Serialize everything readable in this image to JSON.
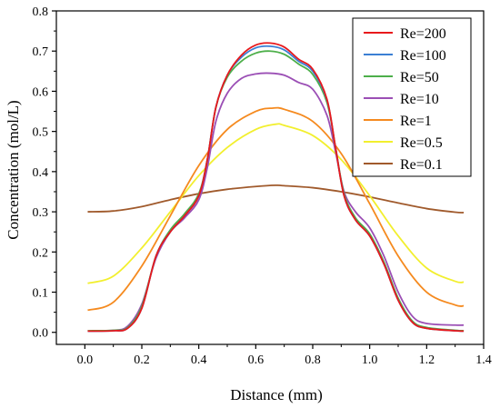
{
  "chart_data": {
    "type": "line",
    "xlabel": "Distance (mm)",
    "ylabel": "Concentration (mol/L)",
    "xlim": [
      -0.1,
      1.4
    ],
    "ylim": [
      -0.03,
      0.8
    ],
    "xticks": [
      0.0,
      0.2,
      0.4,
      0.6,
      0.8,
      1.0,
      1.2,
      1.4
    ],
    "yticks": [
      0.0,
      0.1,
      0.2,
      0.3,
      0.4,
      0.5,
      0.6,
      0.7,
      0.8
    ],
    "xtick_labels": [
      "0.0",
      "0.2",
      "0.4",
      "0.6",
      "0.8",
      "1.0",
      "1.2",
      "1.4"
    ],
    "ytick_labels": [
      "0.0",
      "0.1",
      "0.2",
      "0.3",
      "0.4",
      "0.5",
      "0.6",
      "0.7",
      "0.8"
    ],
    "grid": false,
    "legend_position": "top-right",
    "series": [
      {
        "name": "Re=200",
        "color": "#e8191c",
        "x": [
          0.01,
          0.1,
          0.15,
          0.2,
          0.25,
          0.3,
          0.35,
          0.4,
          0.43,
          0.46,
          0.5,
          0.55,
          0.6,
          0.65,
          0.7,
          0.75,
          0.8,
          0.85,
          0.88,
          0.91,
          0.95,
          1.0,
          1.05,
          1.1,
          1.15,
          1.2,
          1.3,
          1.33
        ],
        "y": [
          0.003,
          0.004,
          0.01,
          0.06,
          0.19,
          0.25,
          0.29,
          0.34,
          0.43,
          0.56,
          0.64,
          0.69,
          0.715,
          0.72,
          0.71,
          0.68,
          0.655,
          0.58,
          0.46,
          0.34,
          0.28,
          0.24,
          0.17,
          0.08,
          0.025,
          0.01,
          0.004,
          0.003
        ]
      },
      {
        "name": "Re=100",
        "color": "#3b7fd4",
        "x": [
          0.01,
          0.1,
          0.15,
          0.2,
          0.25,
          0.3,
          0.35,
          0.4,
          0.43,
          0.46,
          0.5,
          0.55,
          0.6,
          0.65,
          0.7,
          0.75,
          0.8,
          0.85,
          0.88,
          0.91,
          0.95,
          1.0,
          1.05,
          1.1,
          1.15,
          1.2,
          1.3,
          1.33
        ],
        "y": [
          0.003,
          0.004,
          0.01,
          0.06,
          0.19,
          0.25,
          0.29,
          0.34,
          0.43,
          0.56,
          0.64,
          0.685,
          0.708,
          0.712,
          0.703,
          0.675,
          0.65,
          0.578,
          0.46,
          0.34,
          0.28,
          0.24,
          0.17,
          0.08,
          0.025,
          0.01,
          0.004,
          0.003
        ]
      },
      {
        "name": "Re=50",
        "color": "#4daf4a",
        "x": [
          0.01,
          0.1,
          0.15,
          0.2,
          0.25,
          0.3,
          0.35,
          0.4,
          0.43,
          0.46,
          0.5,
          0.55,
          0.6,
          0.65,
          0.7,
          0.75,
          0.8,
          0.85,
          0.88,
          0.91,
          0.95,
          1.0,
          1.05,
          1.1,
          1.15,
          1.2,
          1.3,
          1.33
        ],
        "y": [
          0.004,
          0.005,
          0.012,
          0.065,
          0.19,
          0.255,
          0.295,
          0.345,
          0.43,
          0.56,
          0.635,
          0.675,
          0.695,
          0.7,
          0.692,
          0.668,
          0.642,
          0.572,
          0.46,
          0.345,
          0.285,
          0.245,
          0.175,
          0.085,
          0.028,
          0.012,
          0.005,
          0.004
        ]
      },
      {
        "name": "Re=10",
        "color": "#9b4fb5",
        "x": [
          0.01,
          0.1,
          0.15,
          0.2,
          0.25,
          0.3,
          0.35,
          0.4,
          0.43,
          0.46,
          0.5,
          0.55,
          0.6,
          0.65,
          0.7,
          0.75,
          0.8,
          0.85,
          0.88,
          0.91,
          0.95,
          1.0,
          1.05,
          1.1,
          1.15,
          1.2,
          1.3,
          1.33
        ],
        "y": [
          0.003,
          0.005,
          0.015,
          0.07,
          0.185,
          0.25,
          0.285,
          0.33,
          0.41,
          0.525,
          0.595,
          0.632,
          0.643,
          0.645,
          0.64,
          0.622,
          0.605,
          0.54,
          0.45,
          0.35,
          0.3,
          0.26,
          0.19,
          0.1,
          0.04,
          0.022,
          0.018,
          0.018
        ]
      },
      {
        "name": "Re=1",
        "color": "#f58a1f",
        "x": [
          0.01,
          0.1,
          0.2,
          0.3,
          0.4,
          0.5,
          0.6,
          0.66,
          0.7,
          0.8,
          0.9,
          1.0,
          1.1,
          1.2,
          1.3,
          1.33
        ],
        "y": [
          0.055,
          0.075,
          0.165,
          0.29,
          0.415,
          0.505,
          0.55,
          0.558,
          0.555,
          0.525,
          0.445,
          0.32,
          0.19,
          0.1,
          0.068,
          0.066
        ]
      },
      {
        "name": "Re=0.5",
        "color": "#f2ef2e",
        "x": [
          0.01,
          0.1,
          0.2,
          0.3,
          0.4,
          0.5,
          0.6,
          0.67,
          0.7,
          0.8,
          0.9,
          1.0,
          1.1,
          1.2,
          1.3,
          1.33
        ],
        "y": [
          0.122,
          0.14,
          0.21,
          0.3,
          0.39,
          0.46,
          0.505,
          0.518,
          0.515,
          0.49,
          0.43,
          0.34,
          0.24,
          0.16,
          0.127,
          0.125
        ]
      },
      {
        "name": "Re=0.1",
        "color": "#a05a2c",
        "x": [
          0.01,
          0.1,
          0.2,
          0.3,
          0.4,
          0.5,
          0.6,
          0.67,
          0.7,
          0.8,
          0.9,
          1.0,
          1.1,
          1.2,
          1.3,
          1.33
        ],
        "y": [
          0.3,
          0.302,
          0.313,
          0.33,
          0.345,
          0.356,
          0.363,
          0.366,
          0.365,
          0.36,
          0.35,
          0.337,
          0.322,
          0.308,
          0.299,
          0.298
        ]
      }
    ]
  }
}
